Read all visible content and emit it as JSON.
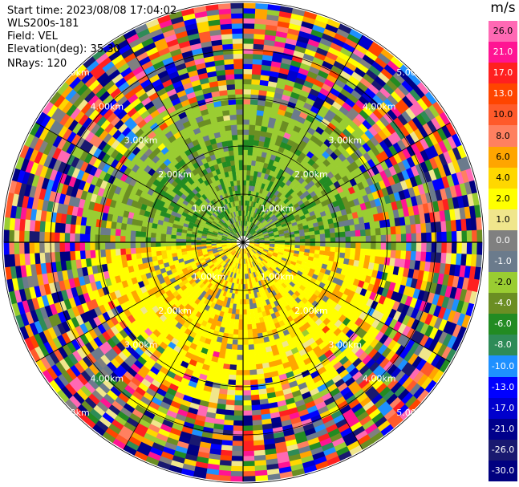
{
  "info": {
    "start_time": "Start time: 2023/08/08 17:04:02",
    "station": "WLS200s-181",
    "field": "Field: VEL",
    "elevation": "Elevation(deg): 35.30",
    "nrays": "NRays: 120"
  },
  "colorbar": {
    "unit": "m/s",
    "levels": [
      {
        "label": "26.0",
        "color": "#ff69b4"
      },
      {
        "label": "21.0",
        "color": "#ff1493"
      },
      {
        "label": "17.0",
        "color": "#ff2020"
      },
      {
        "label": "13.0",
        "color": "#ff4500"
      },
      {
        "label": "10.0",
        "color": "#ff5a2a"
      },
      {
        "label": "8.0",
        "color": "#ff8060"
      },
      {
        "label": "6.0",
        "color": "#ffa500"
      },
      {
        "label": "4.0",
        "color": "#ffd700"
      },
      {
        "label": "2.0",
        "color": "#ffff00"
      },
      {
        "label": "1.0",
        "color": "#f0e68c"
      },
      {
        "label": "0.0",
        "color": "#808080"
      },
      {
        "label": "-1.0",
        "color": "#6b7b8c"
      },
      {
        "label": "-2.0",
        "color": "#9acd32"
      },
      {
        "label": "-4.0",
        "color": "#6b8e23"
      },
      {
        "label": "-6.0",
        "color": "#228b22"
      },
      {
        "label": "-8.0",
        "color": "#2e8b57"
      },
      {
        "label": "-10.0",
        "color": "#1e90ff"
      },
      {
        "label": "-13.0",
        "color": "#0000ff"
      },
      {
        "label": "-17.0",
        "color": "#0000cd"
      },
      {
        "label": "-21.0",
        "color": "#00008b"
      },
      {
        "label": "-26.0",
        "color": "#191970"
      },
      {
        "label": "-30.0",
        "color": "#000080"
      }
    ]
  },
  "chart_data": {
    "type": "heatmap",
    "field": "VEL",
    "elevation_deg": 35.3,
    "nrays": 120,
    "range_rings_km": [
      1.0,
      2.0,
      3.0,
      4.0,
      5.0
    ],
    "ring_labels": [
      "1.00km",
      "2.00km",
      "3.00km",
      "4.00km",
      "5.00km"
    ],
    "inner_structure": {
      "north_sector_velocity": [
        -6.0,
        -1.0
      ],
      "south_sector_velocity": [
        1.0,
        6.0
      ],
      "outer_region": "noise (random velocities across full scale)"
    }
  }
}
